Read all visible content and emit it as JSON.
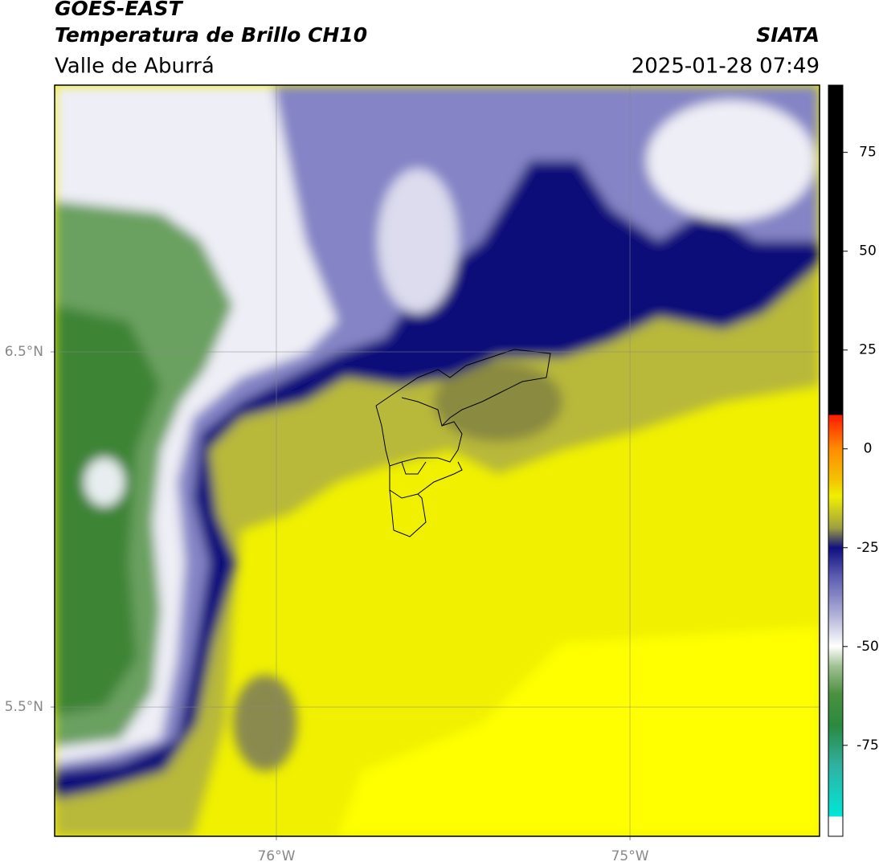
{
  "header": {
    "title": "GOES-EAST",
    "subtitle": "Temperatura de Brillo CH10",
    "region": "Valle de Aburrá",
    "source": "SIATA",
    "timestamp": "2025-01-28 07:49"
  },
  "map": {
    "lon_range": [
      -76.627,
      -74.464
    ],
    "lat_range": [
      5.136,
      7.251
    ],
    "lon_ticks": [
      {
        "value": -76,
        "label": "76°W"
      },
      {
        "value": -75,
        "label": "75°W"
      }
    ],
    "lat_ticks": [
      {
        "value": 6.5,
        "label": "6.5°N"
      },
      {
        "value": 5.5,
        "label": "5.5°N"
      }
    ]
  },
  "colorbar": {
    "range": [
      -98,
      92
    ],
    "ticks": [
      75,
      50,
      25,
      0,
      -25,
      -50,
      -75
    ]
  }
}
